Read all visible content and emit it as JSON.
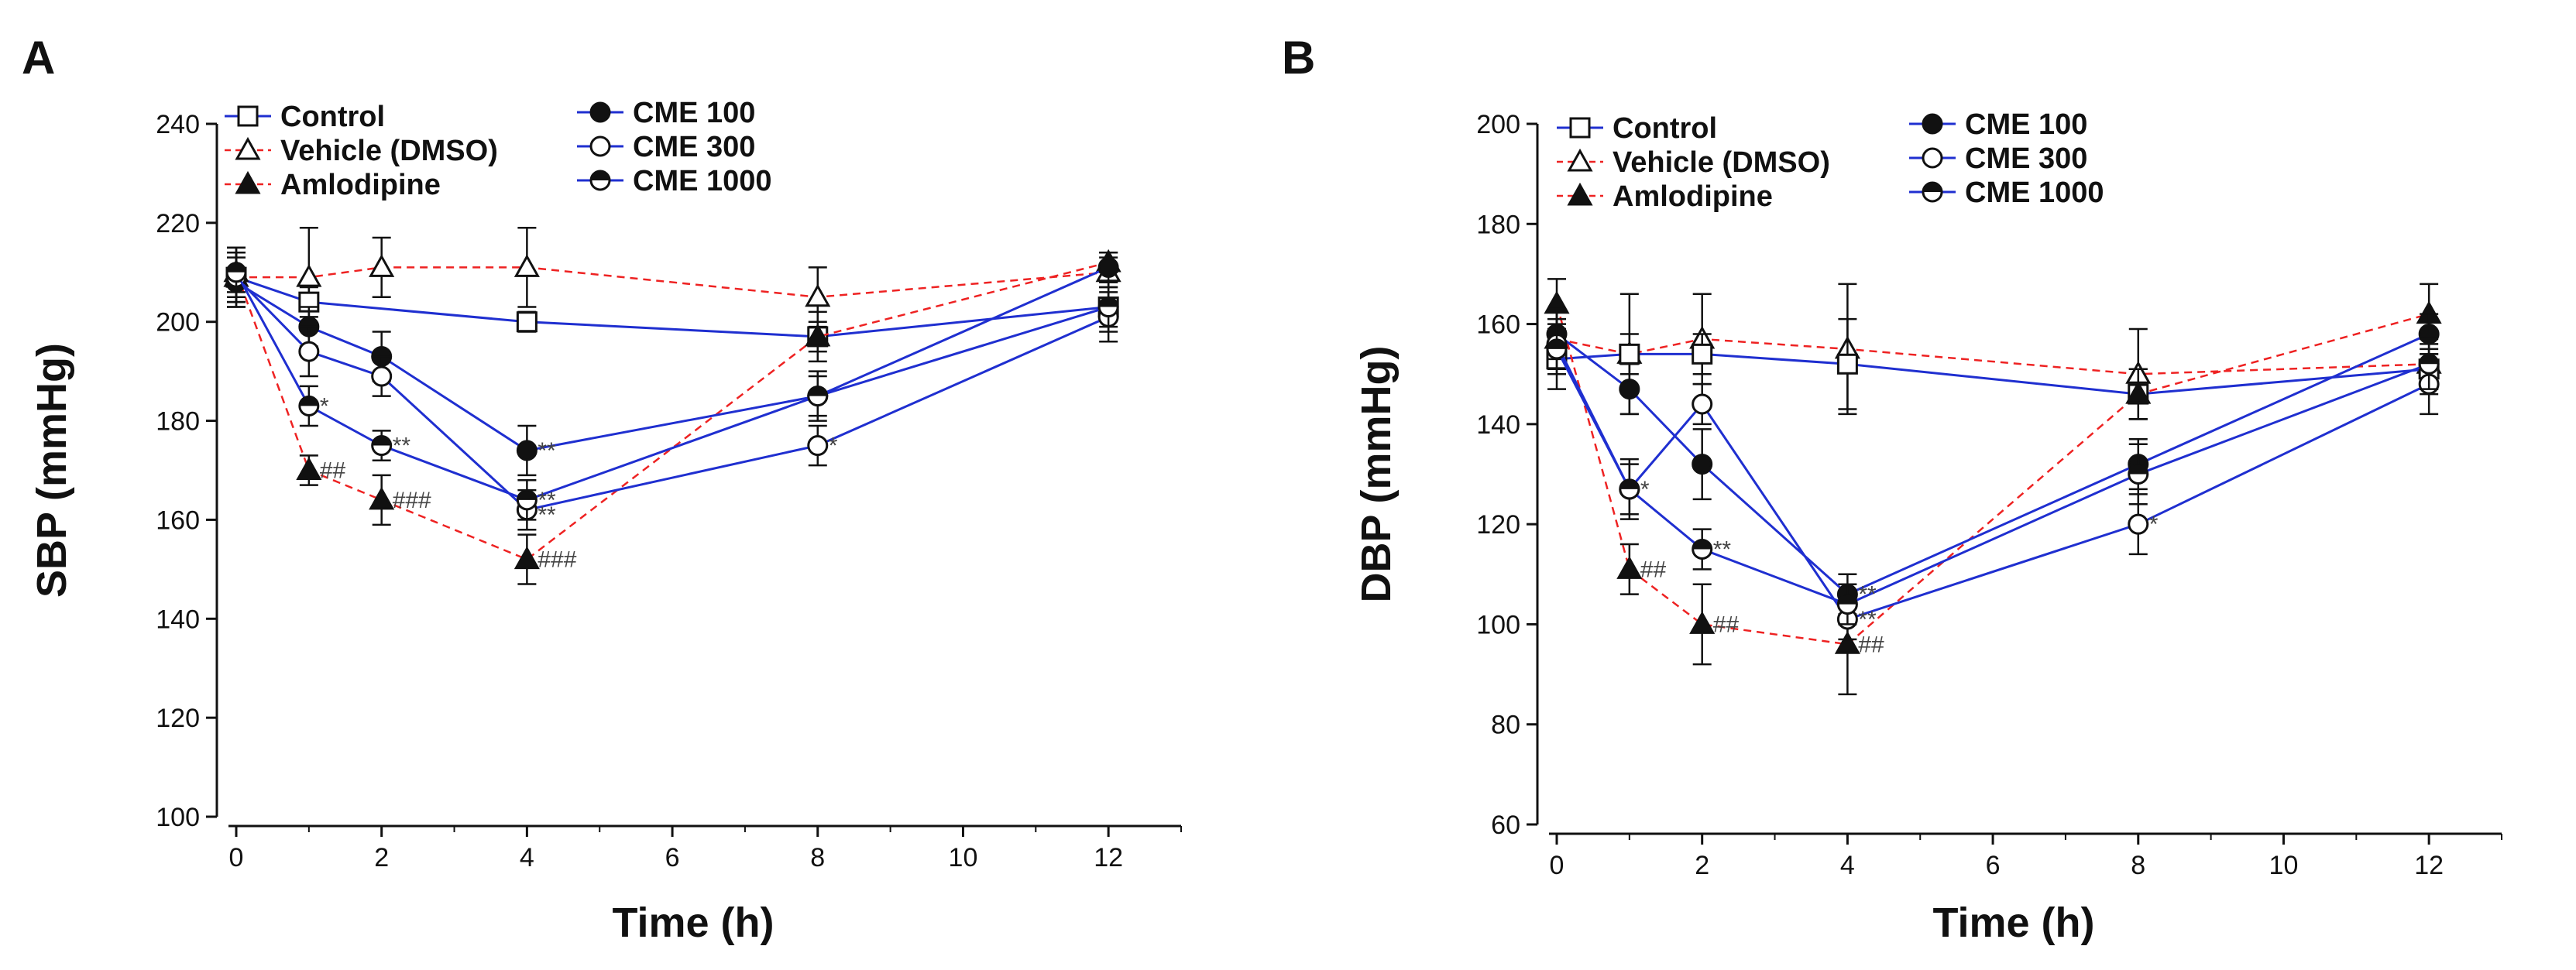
{
  "chart_data": [
    {
      "type": "line",
      "panel": "A",
      "xlabel": "Time (h)",
      "ylabel": "SBP (mmHg)",
      "xlim": [
        0,
        13
      ],
      "ylim": [
        100,
        240
      ],
      "xticks": [
        0,
        2,
        4,
        6,
        8,
        10,
        12
      ],
      "yticks": [
        100,
        120,
        140,
        160,
        180,
        200,
        220,
        240
      ],
      "x": [
        0,
        1,
        2,
        4,
        8,
        12
      ],
      "legend": {
        "left": [
          "Control",
          "Vehicle (DMSO)",
          "Amlodipine"
        ],
        "right": [
          "CME 100",
          "CME 300",
          "CME 1000"
        ]
      },
      "series": [
        {
          "name": "Control",
          "marker": "square-open",
          "color": "#1f2fd0",
          "dash": false,
          "x": [
            0,
            1,
            4,
            8,
            12
          ],
          "values": [
            209,
            204,
            200,
            197,
            203
          ],
          "err": [
            5,
            3,
            2,
            3,
            4
          ]
        },
        {
          "name": "Vehicle (DMSO)",
          "marker": "triangle-open",
          "color": "#ee2222",
          "dash": true,
          "x": [
            0,
            1,
            2,
            4,
            8,
            12
          ],
          "values": [
            209,
            209,
            211,
            211,
            205,
            210
          ],
          "err": [
            6,
            10,
            6,
            8,
            6,
            3
          ]
        },
        {
          "name": "Amlodipine",
          "marker": "triangle-filled",
          "color": "#ee2222",
          "dash": true,
          "x": [
            0,
            1,
            2,
            4,
            8,
            12
          ],
          "values": [
            210,
            170,
            164,
            152,
            197,
            212
          ],
          "err": [
            4,
            3,
            5,
            5,
            5,
            2
          ]
        },
        {
          "name": "CME 100",
          "marker": "circle-filled",
          "color": "#1f2fd0",
          "dash": false,
          "x": [
            0,
            1,
            2,
            4,
            8,
            12
          ],
          "values": [
            208,
            199,
            193,
            174,
            185,
            211
          ],
          "err": [
            5,
            4,
            5,
            5,
            5,
            3
          ]
        },
        {
          "name": "CME 300",
          "marker": "circle-open",
          "color": "#1f2fd0",
          "dash": false,
          "x": [
            0,
            1,
            2,
            4,
            8,
            12
          ],
          "values": [
            209,
            194,
            189,
            162,
            175,
            201
          ],
          "err": [
            5,
            5,
            4,
            4,
            4,
            5
          ]
        },
        {
          "name": "CME 1000",
          "marker": "circle-half",
          "color": "#1f2fd0",
          "dash": false,
          "x": [
            0,
            1,
            2,
            4,
            8,
            12
          ],
          "values": [
            210,
            183,
            175,
            164,
            185,
            203
          ],
          "err": [
            5,
            4,
            3,
            4,
            4,
            5
          ]
        }
      ],
      "annotations": [
        {
          "x": 1,
          "y": 183,
          "text": "*"
        },
        {
          "x": 1,
          "y": 170,
          "text": "##"
        },
        {
          "x": 2,
          "y": 175,
          "text": "**"
        },
        {
          "x": 2,
          "y": 164,
          "text": "###"
        },
        {
          "x": 4,
          "y": 174,
          "text": "**"
        },
        {
          "x": 4,
          "y": 164,
          "text": "**"
        },
        {
          "x": 4,
          "y": 161,
          "text": "**"
        },
        {
          "x": 4,
          "y": 152,
          "text": "###"
        },
        {
          "x": 8,
          "y": 175,
          "text": "*"
        }
      ]
    },
    {
      "type": "line",
      "panel": "B",
      "xlabel": "Time (h)",
      "ylabel": "DBP (mmHg)",
      "xlim": [
        0,
        13
      ],
      "ylim": [
        60,
        200
      ],
      "xticks": [
        0,
        2,
        4,
        6,
        8,
        10,
        12
      ],
      "yticks": [
        60,
        80,
        100,
        120,
        140,
        160,
        180,
        200
      ],
      "x": [
        0,
        1,
        2,
        4,
        8,
        12
      ],
      "legend": {
        "left": [
          "Control",
          "Vehicle (DMSO)",
          "Amlodipine"
        ],
        "right": [
          "CME 100",
          "CME 300",
          "CME 1000"
        ]
      },
      "series": [
        {
          "name": "Control",
          "marker": "square-open",
          "color": "#1f2fd0",
          "dash": false,
          "x": [
            0,
            1,
            2,
            4,
            8,
            12
          ],
          "values": [
            153,
            154,
            154,
            152,
            146,
            151
          ],
          "err": [
            6,
            4,
            4,
            9,
            5,
            4
          ]
        },
        {
          "name": "Vehicle (DMSO)",
          "marker": "triangle-open",
          "color": "#ee2222",
          "dash": true,
          "x": [
            0,
            1,
            2,
            4,
            8,
            12
          ],
          "values": [
            157,
            154,
            157,
            155,
            150,
            152
          ],
          "err": [
            6,
            12,
            9,
            13,
            9,
            6
          ]
        },
        {
          "name": "Amlodipine",
          "marker": "triangle-filled",
          "color": "#ee2222",
          "dash": true,
          "x": [
            0,
            1,
            2,
            4,
            8,
            12
          ],
          "values": [
            164,
            111,
            100,
            96,
            146,
            162
          ],
          "err": [
            5,
            5,
            8,
            10,
            5,
            6
          ]
        },
        {
          "name": "CME 100",
          "marker": "circle-filled",
          "color": "#1f2fd0",
          "dash": false,
          "x": [
            0,
            1,
            2,
            4,
            8,
            12
          ],
          "values": [
            158,
            147,
            132,
            106,
            132,
            158
          ],
          "err": [
            5,
            5,
            7,
            4,
            5,
            4
          ]
        },
        {
          "name": "CME 300",
          "marker": "circle-open",
          "color": "#1f2fd0",
          "dash": false,
          "x": [
            0,
            1,
            2,
            4,
            8,
            12
          ],
          "values": [
            156,
            127,
            144,
            101,
            120,
            148
          ],
          "err": [
            5,
            6,
            4,
            4,
            6,
            6
          ]
        },
        {
          "name": "CME 1000",
          "marker": "circle-half",
          "color": "#1f2fd0",
          "dash": false,
          "x": [
            0,
            1,
            2,
            4,
            8,
            12
          ],
          "values": [
            155,
            127,
            115,
            104,
            130,
            152
          ],
          "err": [
            5,
            5,
            4,
            4,
            6,
            5
          ]
        }
      ],
      "annotations": [
        {
          "x": 1,
          "y": 127,
          "text": "*"
        },
        {
          "x": 1,
          "y": 111,
          "text": "##"
        },
        {
          "x": 2,
          "y": 115,
          "text": "**"
        },
        {
          "x": 2,
          "y": 100,
          "text": "##"
        },
        {
          "x": 4,
          "y": 106,
          "text": "**"
        },
        {
          "x": 4,
          "y": 101,
          "text": "**"
        },
        {
          "x": 4,
          "y": 96,
          "text": "##"
        },
        {
          "x": 8,
          "y": 120,
          "text": "*"
        }
      ]
    }
  ]
}
